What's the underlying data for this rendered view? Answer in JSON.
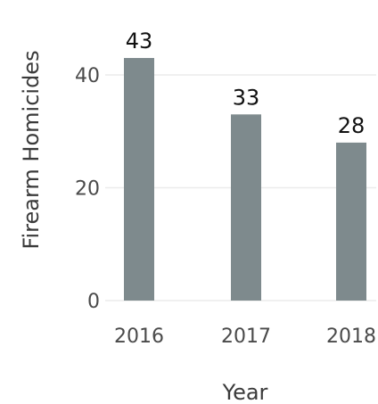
{
  "chart_data": {
    "type": "bar",
    "categories": [
      "2016",
      "2017",
      "2018"
    ],
    "values": [
      43,
      33,
      28
    ],
    "data_labels": [
      "43",
      "33",
      "28"
    ],
    "xlabel": "Year",
    "ylabel": "Firearm Homicides",
    "ylim": [
      0,
      50
    ],
    "yticks": [
      0,
      20,
      40
    ],
    "ytick_labels": [
      "0",
      "20",
      "40"
    ],
    "grid": true,
    "bar_color": "#7e8a8d"
  }
}
